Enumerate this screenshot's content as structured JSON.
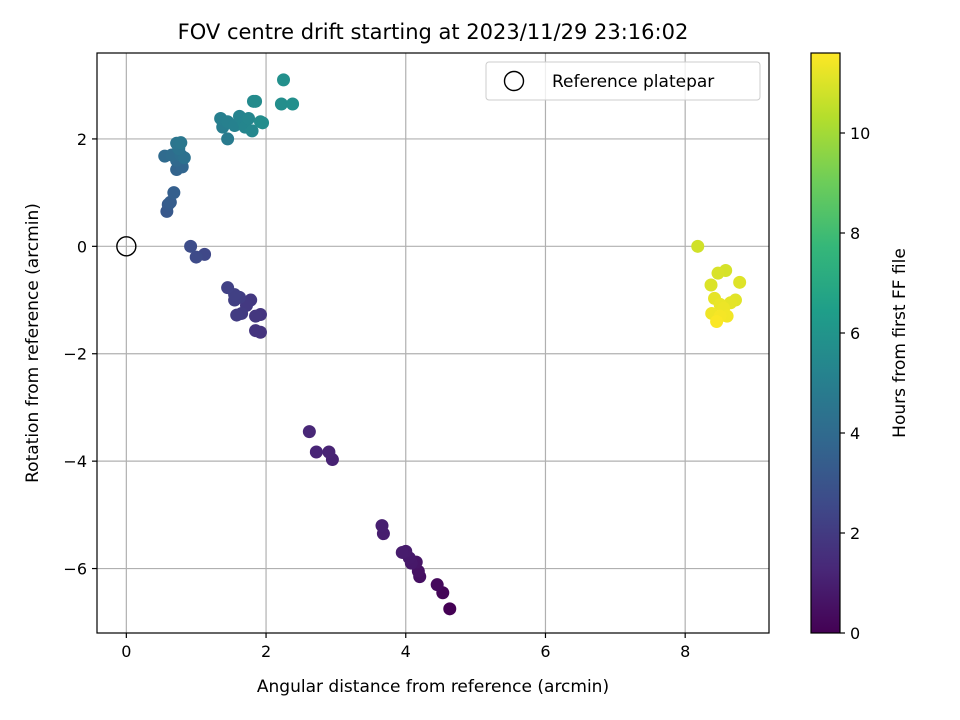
{
  "chart_data": {
    "type": "scatter",
    "title": "FOV centre drift starting at 2023/11/29 23:16:02",
    "xlabel": "Angular distance from reference (arcmin)",
    "ylabel": "Rotation from reference (arcmin)",
    "xlim": [
      -0.42,
      9.2
    ],
    "ylim": [
      -7.2,
      3.6
    ],
    "xticks": [
      0,
      2,
      4,
      6,
      8
    ],
    "yticks": [
      -6,
      -4,
      -2,
      0,
      2
    ],
    "xtick_labels": [
      "0",
      "2",
      "4",
      "6",
      "8"
    ],
    "ytick_labels": [
      "−6",
      "−4",
      "−2",
      "0",
      "2"
    ],
    "grid": true,
    "legend": {
      "location": "top-right",
      "entries": [
        "Reference platepar"
      ]
    },
    "colorbar": {
      "label": "Hours from first FF file",
      "colormap": "viridis",
      "range": [
        0,
        11.6
      ],
      "ticks": [
        0,
        2,
        4,
        6,
        8,
        10
      ],
      "tick_labels": [
        "0",
        "2",
        "4",
        "6",
        "8",
        "10"
      ]
    },
    "reference_point": {
      "x": 0,
      "y": 0,
      "label": "Reference platepar"
    },
    "series": [
      {
        "name": "FOV centre drift",
        "points": [
          {
            "x": 4.63,
            "y": -6.75,
            "c": 0.0
          },
          {
            "x": 4.53,
            "y": -6.45,
            "c": 0.15
          },
          {
            "x": 4.45,
            "y": -6.3,
            "c": 0.3
          },
          {
            "x": 4.2,
            "y": -6.15,
            "c": 0.45
          },
          {
            "x": 4.18,
            "y": -6.05,
            "c": 0.55
          },
          {
            "x": 4.15,
            "y": -5.88,
            "c": 0.65
          },
          {
            "x": 4.08,
            "y": -5.9,
            "c": 0.75
          },
          {
            "x": 4.05,
            "y": -5.8,
            "c": 0.8
          },
          {
            "x": 4.0,
            "y": -5.68,
            "c": 0.85
          },
          {
            "x": 3.95,
            "y": -5.7,
            "c": 0.9
          },
          {
            "x": 3.68,
            "y": -5.35,
            "c": 0.95
          },
          {
            "x": 3.66,
            "y": -5.2,
            "c": 1.0
          },
          {
            "x": 2.95,
            "y": -3.97,
            "c": 1.1
          },
          {
            "x": 2.9,
            "y": -3.83,
            "c": 1.15
          },
          {
            "x": 2.72,
            "y": -3.83,
            "c": 1.2
          },
          {
            "x": 2.62,
            "y": -3.45,
            "c": 1.25
          },
          {
            "x": 1.92,
            "y": -1.6,
            "c": 1.7
          },
          {
            "x": 1.85,
            "y": -1.57,
            "c": 1.75
          },
          {
            "x": 1.92,
            "y": -1.27,
            "c": 1.8
          },
          {
            "x": 1.85,
            "y": -1.3,
            "c": 1.85
          },
          {
            "x": 1.78,
            "y": -1.0,
            "c": 1.9
          },
          {
            "x": 1.72,
            "y": -1.1,
            "c": 1.95
          },
          {
            "x": 1.65,
            "y": -1.25,
            "c": 2.0
          },
          {
            "x": 1.58,
            "y": -1.28,
            "c": 2.05
          },
          {
            "x": 1.62,
            "y": -0.95,
            "c": 2.1
          },
          {
            "x": 1.55,
            "y": -1.0,
            "c": 2.15
          },
          {
            "x": 1.55,
            "y": -0.9,
            "c": 2.2
          },
          {
            "x": 1.45,
            "y": -0.77,
            "c": 2.25
          },
          {
            "x": 1.12,
            "y": -0.15,
            "c": 2.5
          },
          {
            "x": 1.0,
            "y": -0.2,
            "c": 2.6
          },
          {
            "x": 0.92,
            "y": 0.0,
            "c": 2.7
          },
          {
            "x": 0.58,
            "y": 0.65,
            "c": 3.2
          },
          {
            "x": 0.6,
            "y": 0.78,
            "c": 3.3
          },
          {
            "x": 0.63,
            "y": 0.82,
            "c": 3.4
          },
          {
            "x": 0.68,
            "y": 1.0,
            "c": 3.5
          },
          {
            "x": 0.72,
            "y": 1.43,
            "c": 3.7
          },
          {
            "x": 0.8,
            "y": 1.48,
            "c": 3.8
          },
          {
            "x": 0.72,
            "y": 1.6,
            "c": 3.9
          },
          {
            "x": 0.55,
            "y": 1.68,
            "c": 4.0
          },
          {
            "x": 0.65,
            "y": 1.7,
            "c": 4.1
          },
          {
            "x": 0.78,
            "y": 1.7,
            "c": 4.2
          },
          {
            "x": 0.83,
            "y": 1.65,
            "c": 4.3
          },
          {
            "x": 0.75,
            "y": 1.82,
            "c": 4.4
          },
          {
            "x": 0.72,
            "y": 1.92,
            "c": 4.5
          },
          {
            "x": 0.78,
            "y": 1.93,
            "c": 4.6
          },
          {
            "x": 1.45,
            "y": 2.0,
            "c": 4.8
          },
          {
            "x": 1.38,
            "y": 2.22,
            "c": 4.9
          },
          {
            "x": 1.35,
            "y": 2.38,
            "c": 5.0
          },
          {
            "x": 1.45,
            "y": 2.32,
            "c": 5.05
          },
          {
            "x": 1.55,
            "y": 2.25,
            "c": 5.1
          },
          {
            "x": 1.62,
            "y": 2.42,
            "c": 5.2
          },
          {
            "x": 1.68,
            "y": 2.3,
            "c": 5.25
          },
          {
            "x": 1.7,
            "y": 2.22,
            "c": 5.3
          },
          {
            "x": 1.75,
            "y": 2.38,
            "c": 5.35
          },
          {
            "x": 1.8,
            "y": 2.15,
            "c": 5.4
          },
          {
            "x": 1.82,
            "y": 2.7,
            "c": 5.5
          },
          {
            "x": 1.85,
            "y": 2.7,
            "c": 5.55
          },
          {
            "x": 1.92,
            "y": 2.32,
            "c": 5.6
          },
          {
            "x": 1.95,
            "y": 2.3,
            "c": 5.65
          },
          {
            "x": 2.22,
            "y": 2.65,
            "c": 5.7
          },
          {
            "x": 2.38,
            "y": 2.65,
            "c": 5.75
          },
          {
            "x": 2.25,
            "y": 3.1,
            "c": 5.8
          },
          {
            "x": 8.18,
            "y": 0.0,
            "c": 10.8
          },
          {
            "x": 8.58,
            "y": -0.45,
            "c": 10.9
          },
          {
            "x": 8.47,
            "y": -0.5,
            "c": 10.95
          },
          {
            "x": 8.37,
            "y": -0.72,
            "c": 11.0
          },
          {
            "x": 8.78,
            "y": -0.67,
            "c": 11.05
          },
          {
            "x": 8.72,
            "y": -1.0,
            "c": 11.1
          },
          {
            "x": 8.65,
            "y": -1.05,
            "c": 11.15
          },
          {
            "x": 8.42,
            "y": -0.97,
            "c": 11.2
          },
          {
            "x": 8.5,
            "y": -1.08,
            "c": 11.25
          },
          {
            "x": 8.55,
            "y": -1.15,
            "c": 11.3
          },
          {
            "x": 8.38,
            "y": -1.25,
            "c": 11.35
          },
          {
            "x": 8.6,
            "y": -1.3,
            "c": 11.4
          },
          {
            "x": 8.5,
            "y": -1.3,
            "c": 11.45
          },
          {
            "x": 8.45,
            "y": -1.4,
            "c": 11.55
          }
        ]
      }
    ]
  }
}
